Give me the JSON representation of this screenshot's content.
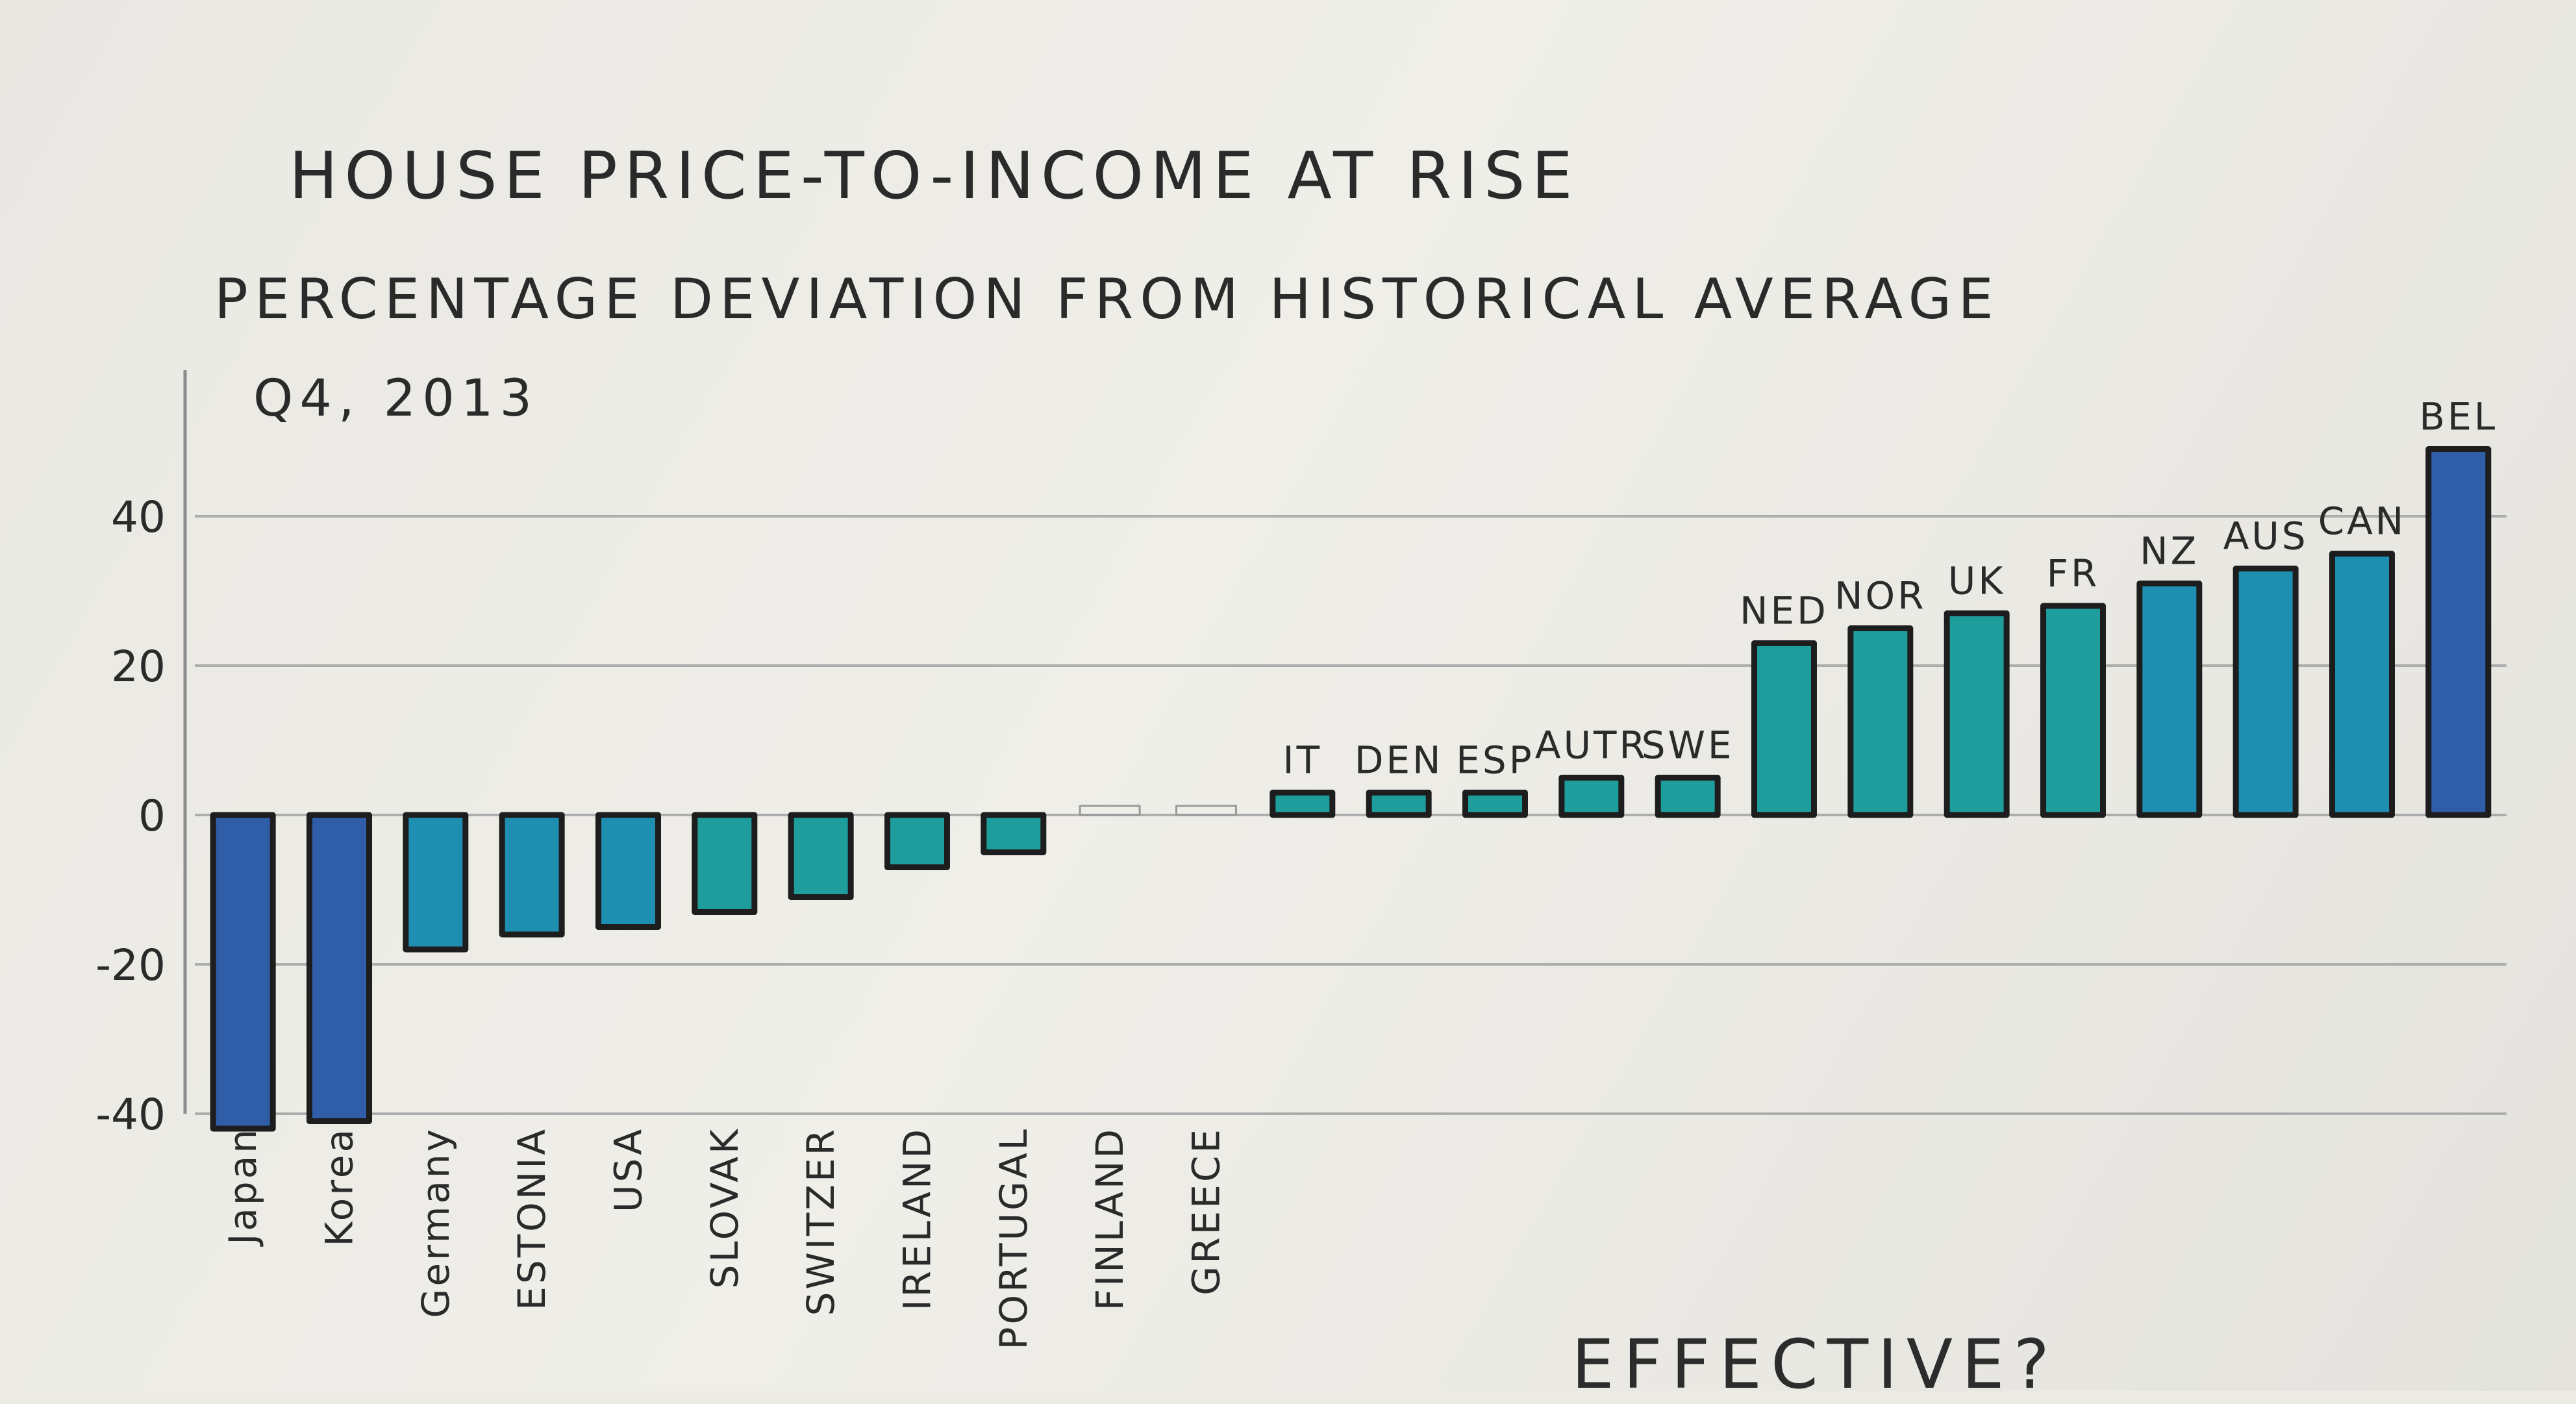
{
  "chart_data": {
    "type": "bar",
    "title": "HOUSE PRICE-TO-INCOME AT RISE",
    "subtitle": "PERCENTAGE DEVIATION FROM HISTORICAL AVERAGE",
    "period": "Q4, 2013",
    "xlabel": "",
    "ylabel": "",
    "ylim": [
      -40,
      60
    ],
    "yticks": [
      "40",
      "20",
      "0",
      "-20",
      "-40"
    ],
    "ytick_values": [
      40,
      20,
      0,
      -20,
      -40
    ],
    "grid": true,
    "categories": [
      "Japan",
      "Korea",
      "Germany",
      "ESTONIA",
      "USA",
      "SLOVAK",
      "SWITZER",
      "IRELAND",
      "PORTUGAL",
      "FINLAND",
      "GREECE",
      "IT",
      "DEN",
      "ESP",
      "AUTR",
      "SWE",
      "NED",
      "NOR",
      "UK",
      "FR",
      "NZ",
      "AUS",
      "CAN",
      "BEL"
    ],
    "values": [
      -42,
      -41,
      -18,
      -16,
      -15,
      -13,
      -11,
      -7,
      -5,
      0,
      0,
      3,
      3,
      3,
      5,
      5,
      23,
      25,
      27,
      28,
      31,
      33,
      35,
      49
    ],
    "bar_colors": [
      "#2f5da8",
      "#2f5da8",
      "#1e8fb0",
      "#1e8fb0",
      "#1e8fb0",
      "#1f9d9d",
      "#1f9d9d",
      "#1f9d9d",
      "#1f9d9d",
      "#1f9d9d",
      "#1f9d9d",
      "#1f9d9d",
      "#1f9d9d",
      "#1f9d9d",
      "#1f9d9d",
      "#1f9d9d",
      "#1f9d9d",
      "#1f9d9d",
      "#1f9d9d",
      "#1f9d9d",
      "#1e8fb0",
      "#1e8fb0",
      "#1e8fb0",
      "#2f5da8"
    ]
  },
  "bottom_text": "EFFECTIVE?"
}
